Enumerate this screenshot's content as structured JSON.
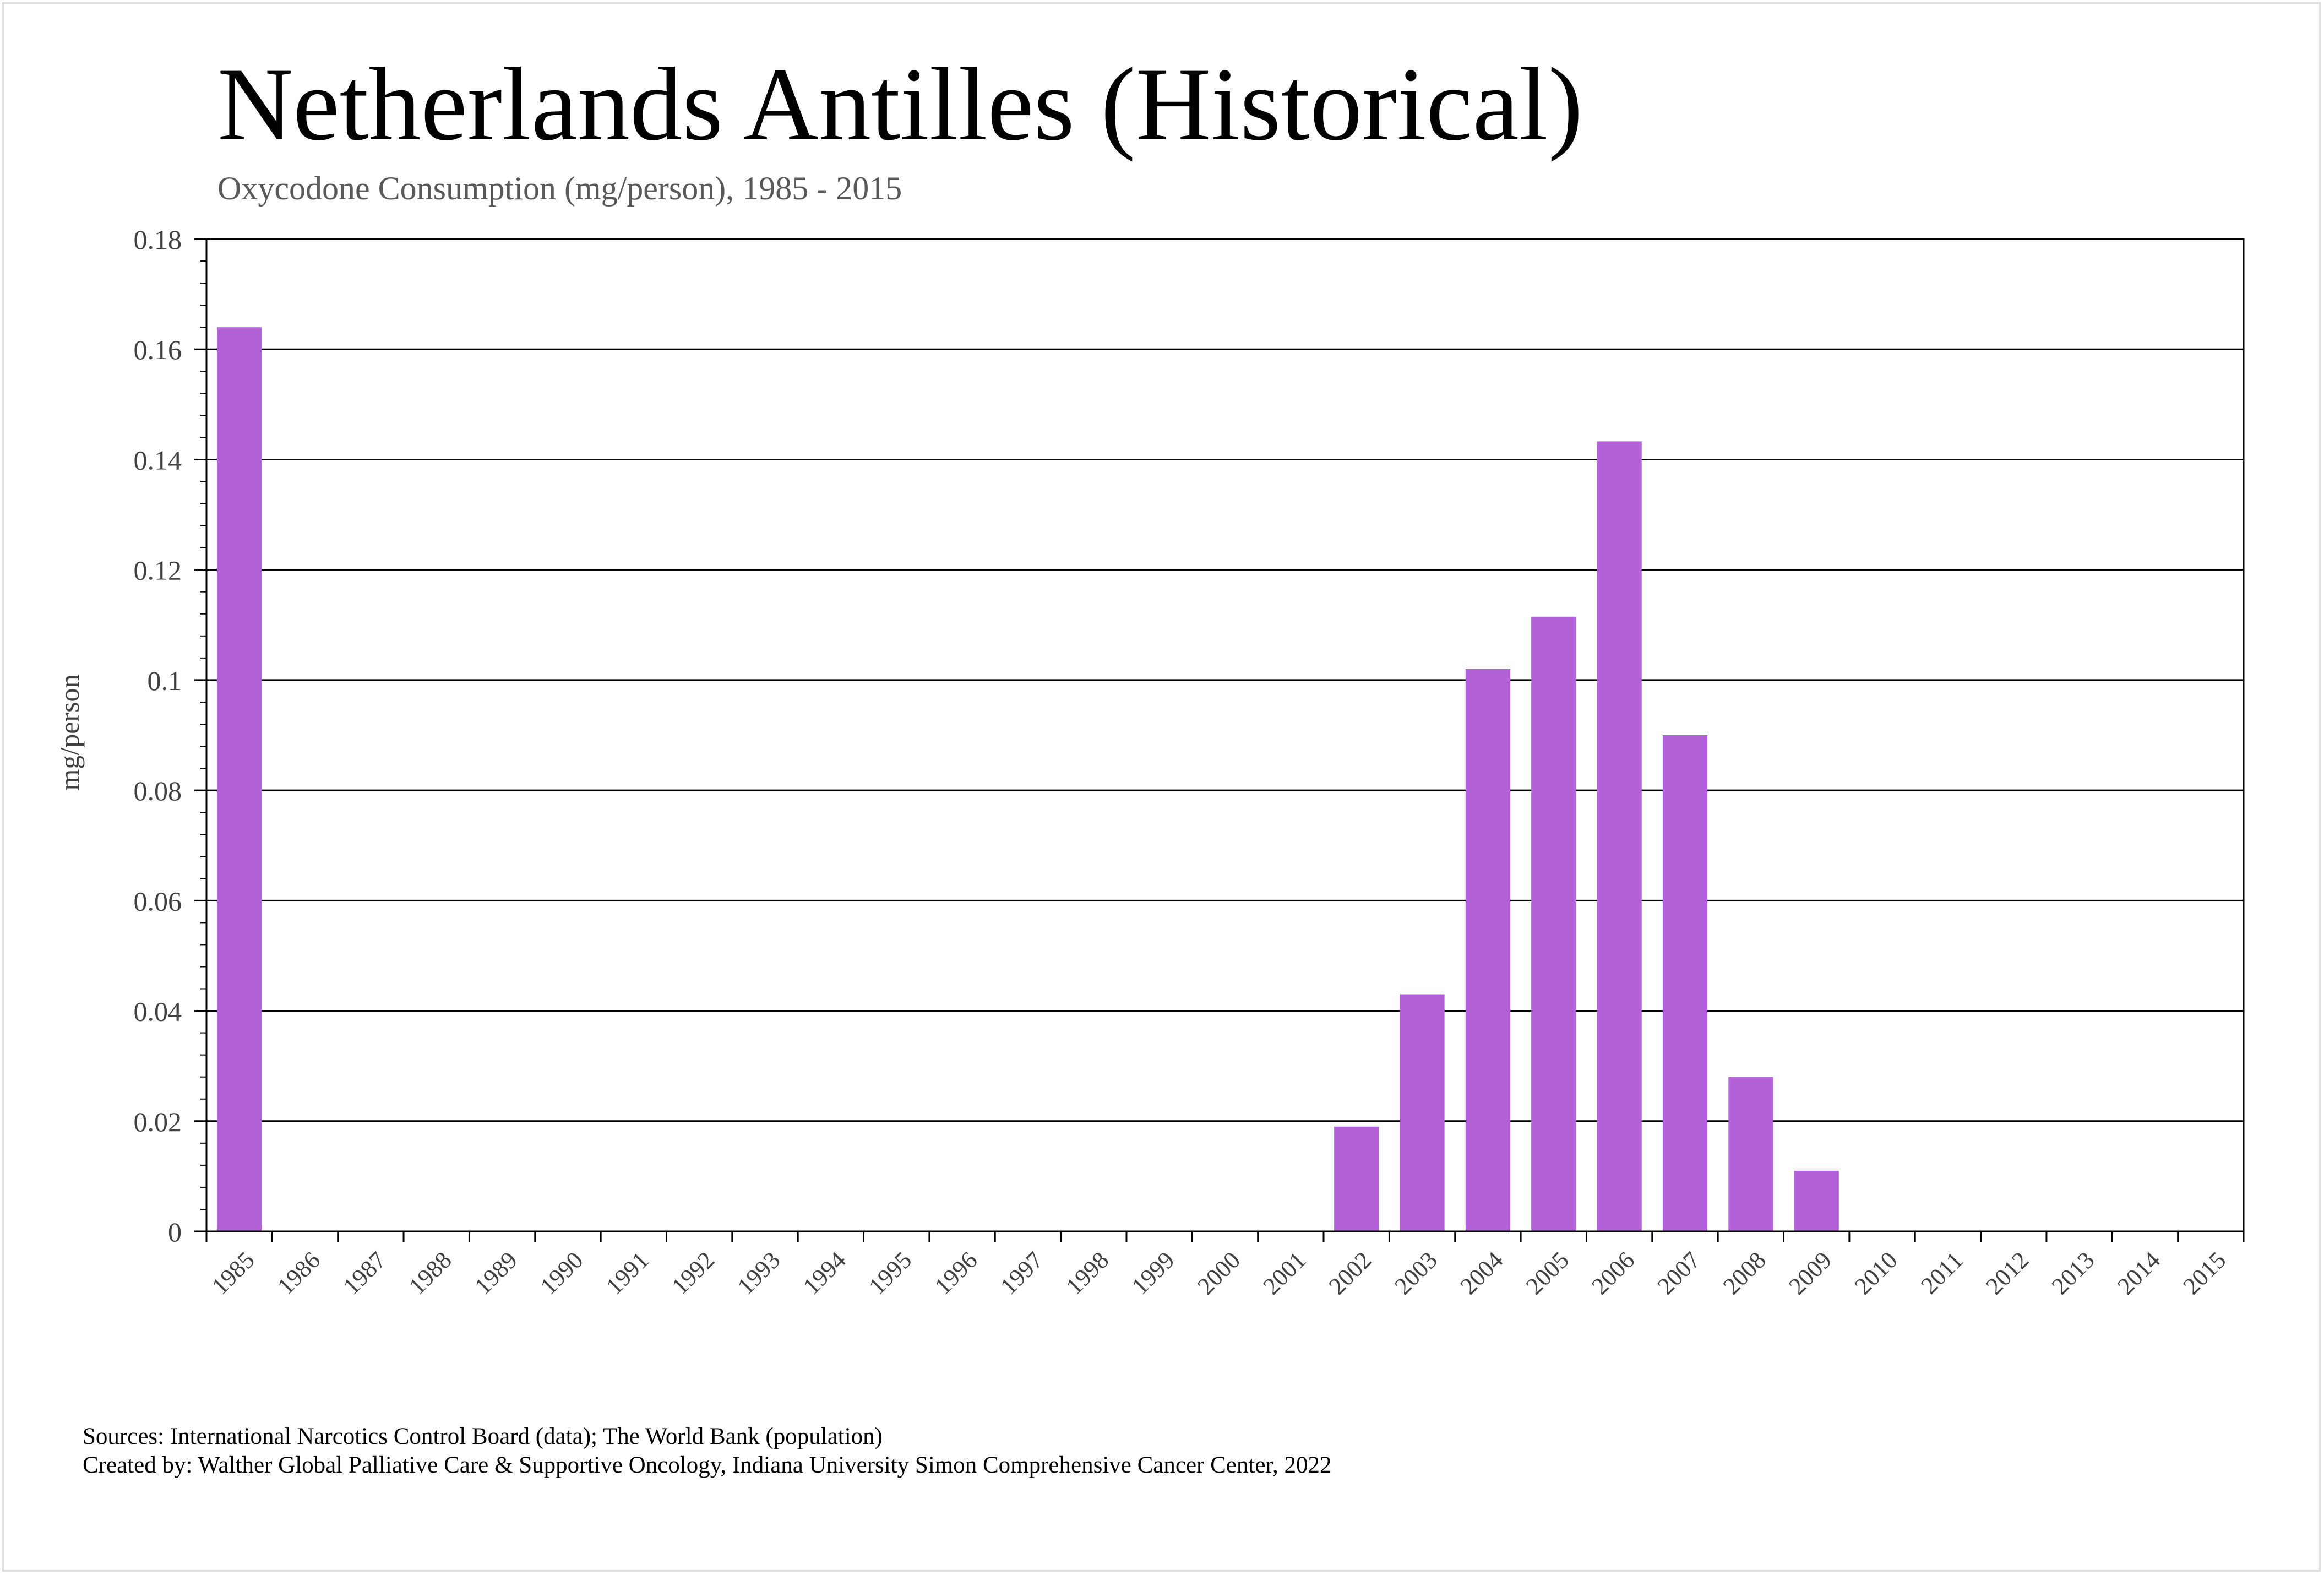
{
  "header": {
    "title": "Netherlands Antilles (Historical)",
    "subtitle": "Oxycodone Consumption (mg/person), 1985 - 2015"
  },
  "footer": {
    "sources": "Sources: International Narcotics Control Board (data); The World Bank (population)",
    "created_by": "Created by: Walther Global Palliative Care & Supportive Oncology, Indiana University Simon Comprehensive Cancer Center, 2022"
  },
  "chart_data": {
    "type": "bar",
    "title": "Netherlands Antilles (Historical)",
    "subtitle": "Oxycodone Consumption (mg/person), 1985 - 2015",
    "xlabel": "",
    "ylabel": "mg/person",
    "ylim": [
      0,
      0.18
    ],
    "yticks": [
      "0",
      "0.02",
      "0.04",
      "0.06",
      "0.08",
      "0.1",
      "0.12",
      "0.14",
      "0.16",
      "0.18"
    ],
    "grid": true,
    "legend": "none",
    "bar_color": "#b262d6",
    "categories": [
      "1985",
      "1986",
      "1987",
      "1988",
      "1989",
      "1990",
      "1991",
      "1992",
      "1993",
      "1994",
      "1995",
      "1996",
      "1997",
      "1998",
      "1999",
      "2000",
      "2001",
      "2002",
      "2003",
      "2004",
      "2005",
      "2006",
      "2007",
      "2008",
      "2009",
      "2010",
      "2011",
      "2012",
      "2013",
      "2014",
      "2015"
    ],
    "values": [
      0.164,
      0,
      0,
      0,
      0,
      0,
      0,
      0,
      0,
      0,
      0,
      0,
      0,
      0,
      0,
      0,
      0,
      0.019,
      0.043,
      0.102,
      0.1115,
      0.1433,
      0.09,
      0.028,
      0.011,
      0,
      0,
      0,
      0,
      0,
      0
    ]
  }
}
